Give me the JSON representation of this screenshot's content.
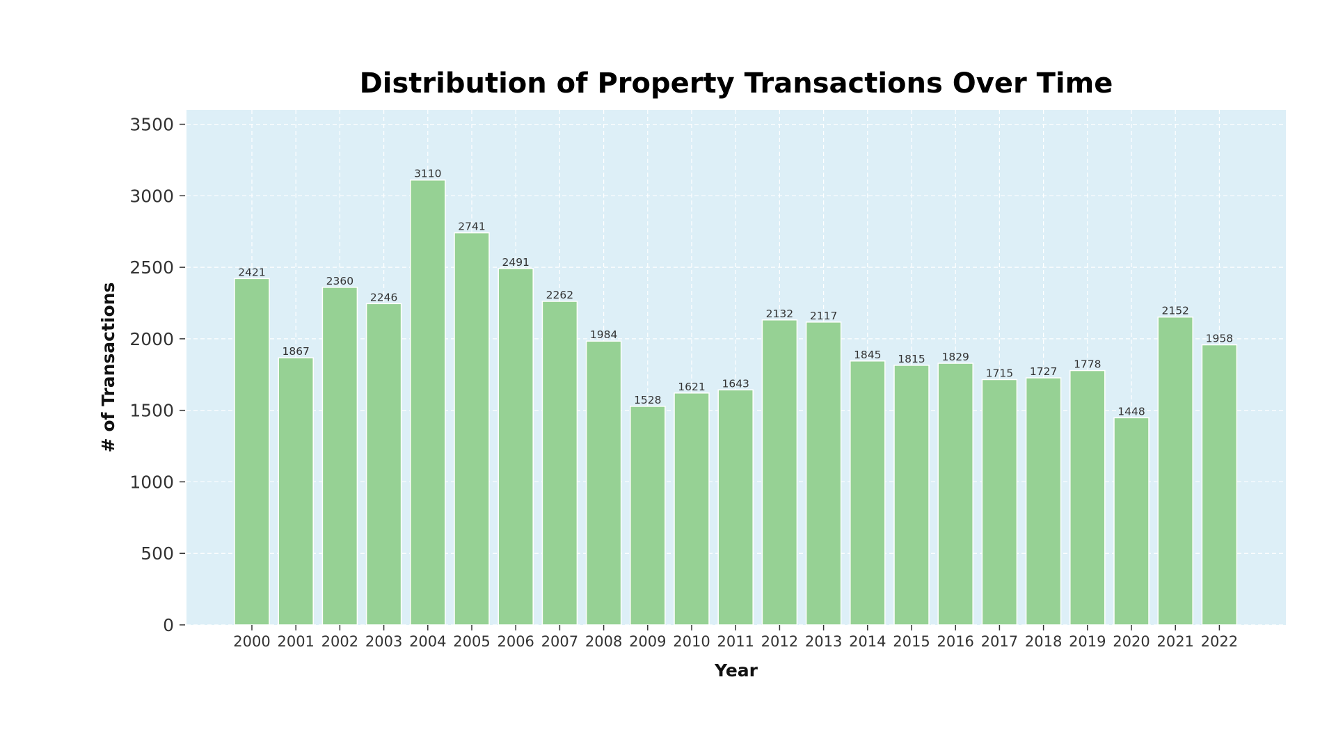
{
  "chart_data": {
    "type": "bar",
    "title": "Distribution of Property Transactions Over Time",
    "xlabel": "Year",
    "ylabel": "# of Transactions",
    "categories": [
      "2000",
      "2001",
      "2002",
      "2003",
      "2004",
      "2005",
      "2006",
      "2007",
      "2008",
      "2009",
      "2010",
      "2011",
      "2012",
      "2013",
      "2014",
      "2015",
      "2016",
      "2017",
      "2018",
      "2019",
      "2020",
      "2021",
      "2022"
    ],
    "values": [
      2421,
      1867,
      2360,
      2246,
      3110,
      2741,
      2491,
      2262,
      1984,
      1528,
      1621,
      1643,
      2132,
      2117,
      1845,
      1815,
      1829,
      1715,
      1727,
      1778,
      1448,
      2152,
      1958
    ],
    "ylim": [
      0,
      3600
    ],
    "yticks": [
      0,
      500,
      1000,
      1500,
      2000,
      2500,
      3000,
      3500
    ],
    "grid": true,
    "data_labels": true,
    "colors": {
      "plot_background": "#ddeff7",
      "bar_fill": "#96d194",
      "bar_edge": "#ffffff",
      "grid": "#ffffff"
    }
  }
}
